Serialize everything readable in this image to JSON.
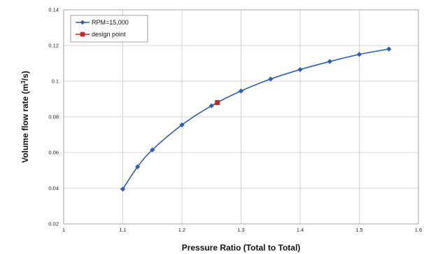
{
  "chart_data": {
    "type": "line",
    "title": "",
    "xlabel": "Pressure Ratio (Total to Total)",
    "ylabel": "Volume flow rate (m³/s)",
    "ylabel_parts": {
      "pre": "Volume flow rate (m",
      "sup": "3",
      "post": "/s)"
    },
    "xlim": [
      1,
      1.6
    ],
    "ylim": [
      0.02,
      0.14
    ],
    "xticks": [
      "1",
      "1.1",
      "1.2",
      "1.3",
      "1.4",
      "1.5",
      "1.6"
    ],
    "yticks": [
      "0.02",
      "0.04",
      "0.06",
      "0.08",
      "0.1",
      "0.12",
      "0.14"
    ],
    "grid": true,
    "legend_position": "top-left",
    "series": [
      {
        "name": "RPM=15,000",
        "color": "#2e5eac",
        "marker": "diamond",
        "x": [
          1.1,
          1.125,
          1.15,
          1.2,
          1.25,
          1.3,
          1.35,
          1.4,
          1.45,
          1.5,
          1.55
        ],
        "y": [
          0.0395,
          0.052,
          0.0615,
          0.0755,
          0.0862,
          0.0945,
          0.1012,
          0.1065,
          0.111,
          0.115,
          0.118
        ]
      },
      {
        "name": "design point",
        "color": "#c0272d",
        "marker": "square",
        "x": [
          1.26
        ],
        "y": [
          0.088
        ]
      }
    ]
  }
}
